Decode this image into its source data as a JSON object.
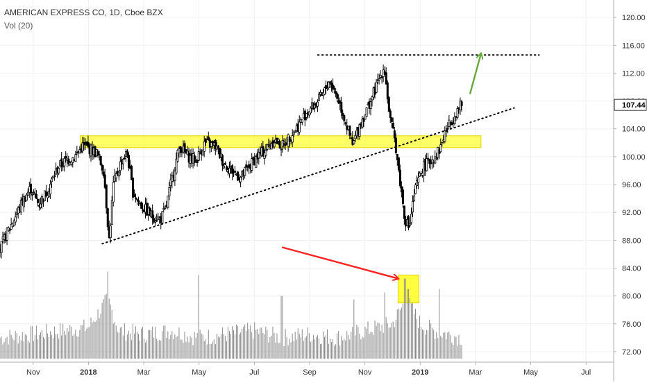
{
  "legend": {
    "symbol_title": "AMERICAN EXPRESS CO, 1D, Cboe BZX",
    "volume_label": "Vol (20)"
  },
  "chart_data": {
    "type": "candlestick",
    "price_axis": {
      "ticks": [
        "120.00",
        "116.00",
        "112.00",
        "108.00",
        "104.00",
        "100.00",
        "96.00",
        "92.00",
        "88.00",
        "84.00",
        "80.00",
        "76.00",
        "72.00"
      ],
      "range": [
        70.5,
        122.5
      ],
      "last_price_label": "107.44",
      "last_price": 107.44
    },
    "time_axis": {
      "labels": [
        "Nov",
        "2018",
        "Mar",
        "May",
        "Jul",
        "Sep",
        "Nov",
        "2019",
        "Mar",
        "May",
        "Jul"
      ],
      "label_months": [
        -2,
        0,
        2,
        4,
        6,
        8,
        10,
        12,
        14,
        16,
        18
      ],
      "range_months": [
        -3.2,
        19.0
      ]
    },
    "series": [
      {
        "kind": "price",
        "month_points": [
          [
            -3.2,
            86.8
          ],
          [
            -3.0,
            88.6
          ],
          [
            -2.7,
            91.0
          ],
          [
            -2.4,
            93.5
          ],
          [
            -2.1,
            95.5
          ],
          [
            -1.8,
            93.2
          ],
          [
            -1.5,
            95.0
          ],
          [
            -1.1,
            98.5
          ],
          [
            -0.8,
            99.5
          ],
          [
            -0.5,
            100.0
          ],
          [
            -0.2,
            101.6
          ],
          [
            0.1,
            101.0
          ],
          [
            0.3,
            100.5
          ],
          [
            0.55,
            98.0
          ],
          [
            0.75,
            88.0
          ],
          [
            0.9,
            96.0
          ],
          [
            1.2,
            99.5
          ],
          [
            1.4,
            100.5
          ],
          [
            1.6,
            95.0
          ],
          [
            1.9,
            93.0
          ],
          [
            2.3,
            91.5
          ],
          [
            2.6,
            91.0
          ],
          [
            2.8,
            92.5
          ],
          [
            3.0,
            96.5
          ],
          [
            3.3,
            101.5
          ],
          [
            3.6,
            100.0
          ],
          [
            3.9,
            99.5
          ],
          [
            4.2,
            102.0
          ],
          [
            4.6,
            101.5
          ],
          [
            4.9,
            99.0
          ],
          [
            5.2,
            98.0
          ],
          [
            5.5,
            97.0
          ],
          [
            5.8,
            98.5
          ],
          [
            6.1,
            100.0
          ],
          [
            6.4,
            101.0
          ],
          [
            6.7,
            102.5
          ],
          [
            7.0,
            101.5
          ],
          [
            7.3,
            103.0
          ],
          [
            7.6,
            104.5
          ],
          [
            7.9,
            106.5
          ],
          [
            8.2,
            107.5
          ],
          [
            8.5,
            109.0
          ],
          [
            8.7,
            111.0
          ],
          [
            8.9,
            109.5
          ],
          [
            9.1,
            107.5
          ],
          [
            9.3,
            105.0
          ],
          [
            9.55,
            101.5
          ],
          [
            9.8,
            104.5
          ],
          [
            10.1,
            107.0
          ],
          [
            10.4,
            110.0
          ],
          [
            10.55,
            111.5
          ],
          [
            10.7,
            113.0
          ],
          [
            10.9,
            105.5
          ],
          [
            11.1,
            102.0
          ],
          [
            11.25,
            97.0
          ],
          [
            11.45,
            91.0
          ],
          [
            11.6,
            89.8
          ],
          [
            11.8,
            95.0
          ],
          [
            12.1,
            98.5
          ],
          [
            12.4,
            99.5
          ],
          [
            12.7,
            101.0
          ],
          [
            12.9,
            103.5
          ],
          [
            13.1,
            105.0
          ],
          [
            13.3,
            106.5
          ],
          [
            13.5,
            107.44
          ]
        ],
        "volume_points": [
          [
            -3.2,
            74.0
          ],
          [
            -2.0,
            74.5
          ],
          [
            0.0,
            75.5
          ],
          [
            0.7,
            79.5
          ],
          [
            1.1,
            75.0
          ],
          [
            2.0,
            74.5
          ],
          [
            3.0,
            75.0
          ],
          [
            4.0,
            74.0
          ],
          [
            5.0,
            74.5
          ],
          [
            6.0,
            75.0
          ],
          [
            7.0,
            74.0
          ],
          [
            8.0,
            74.5
          ],
          [
            9.0,
            74.0
          ],
          [
            10.0,
            75.0
          ],
          [
            11.0,
            76.0
          ],
          [
            11.5,
            79.5
          ],
          [
            12.0,
            76.0
          ],
          [
            12.5,
            75.0
          ],
          [
            13.5,
            74.0
          ]
        ],
        "volume_spikes": [
          [
            0.7,
            83.5
          ],
          [
            4.0,
            83.0
          ],
          [
            7.0,
            80.0
          ],
          [
            9.6,
            79.5
          ],
          [
            10.7,
            80.5
          ],
          [
            11.45,
            82.5
          ],
          [
            11.55,
            81.0
          ],
          [
            12.7,
            81.0
          ]
        ]
      }
    ],
    "annotations": [
      {
        "type": "resistance-line",
        "style": "dotted",
        "price": 114.6,
        "from_month": 8.3,
        "to_month": 16.3,
        "color": "#000000"
      },
      {
        "type": "trend-line",
        "style": "dotted",
        "from": [
          0.5,
          87.5
        ],
        "to": [
          15.4,
          107.0
        ],
        "color": "#000000"
      },
      {
        "type": "support-zone",
        "price_range": [
          101.3,
          103.0
        ],
        "from_month": -0.3,
        "to_month": 14.2,
        "color": "#ffff00"
      },
      {
        "type": "volume-highlight",
        "volume_range": [
          79.0,
          83.0
        ],
        "from_month": 11.2,
        "to_month": 11.95,
        "color": "#ffff00"
      },
      {
        "type": "arrow",
        "from": [
          7.0,
          87.0
        ],
        "to": [
          11.2,
          82.5
        ],
        "color": "#ff2020"
      },
      {
        "type": "arrow",
        "from": [
          13.8,
          109.0
        ],
        "to": [
          14.2,
          114.8
        ],
        "color": "#66a83a"
      }
    ],
    "colors": {
      "candle_up": "#ffffff",
      "candle_down": "#000000",
      "volume": "#8a8a8a",
      "axis_text": "#333333",
      "last_price_box": "#ffffff"
    }
  }
}
